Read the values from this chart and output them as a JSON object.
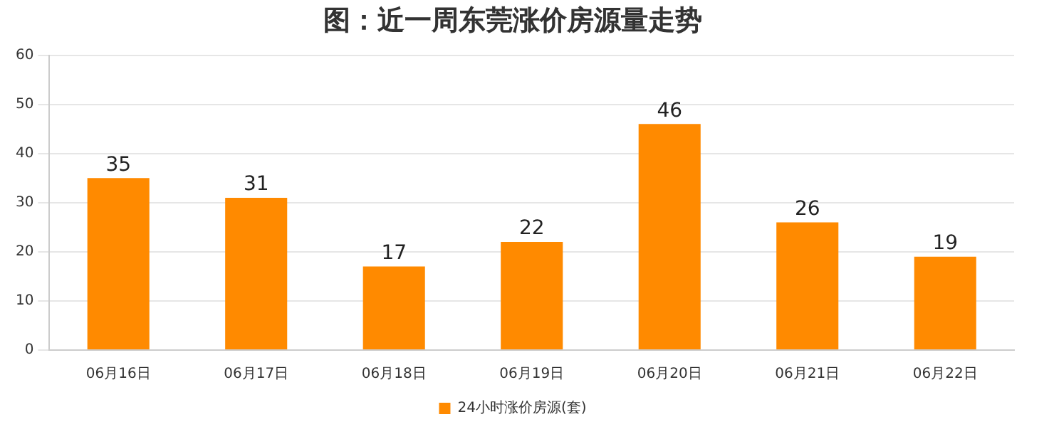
{
  "chart_data": {
    "type": "bar",
    "title": "图：近一周东莞涨价房源量走势",
    "categories": [
      "06月16日",
      "06月17日",
      "06月18日",
      "06月19日",
      "06月20日",
      "06月21日",
      "06月22日"
    ],
    "series": [
      {
        "name": "24小时涨价房源(套)",
        "color": "#ff8a00",
        "values": [
          35,
          31,
          17,
          22,
          46,
          26,
          19
        ]
      }
    ],
    "ylim": [
      0,
      60
    ],
    "yticks": [
      0,
      10,
      20,
      30,
      40,
      50,
      60
    ],
    "grid": "y",
    "legend": "bottom",
    "data_labels": true
  }
}
